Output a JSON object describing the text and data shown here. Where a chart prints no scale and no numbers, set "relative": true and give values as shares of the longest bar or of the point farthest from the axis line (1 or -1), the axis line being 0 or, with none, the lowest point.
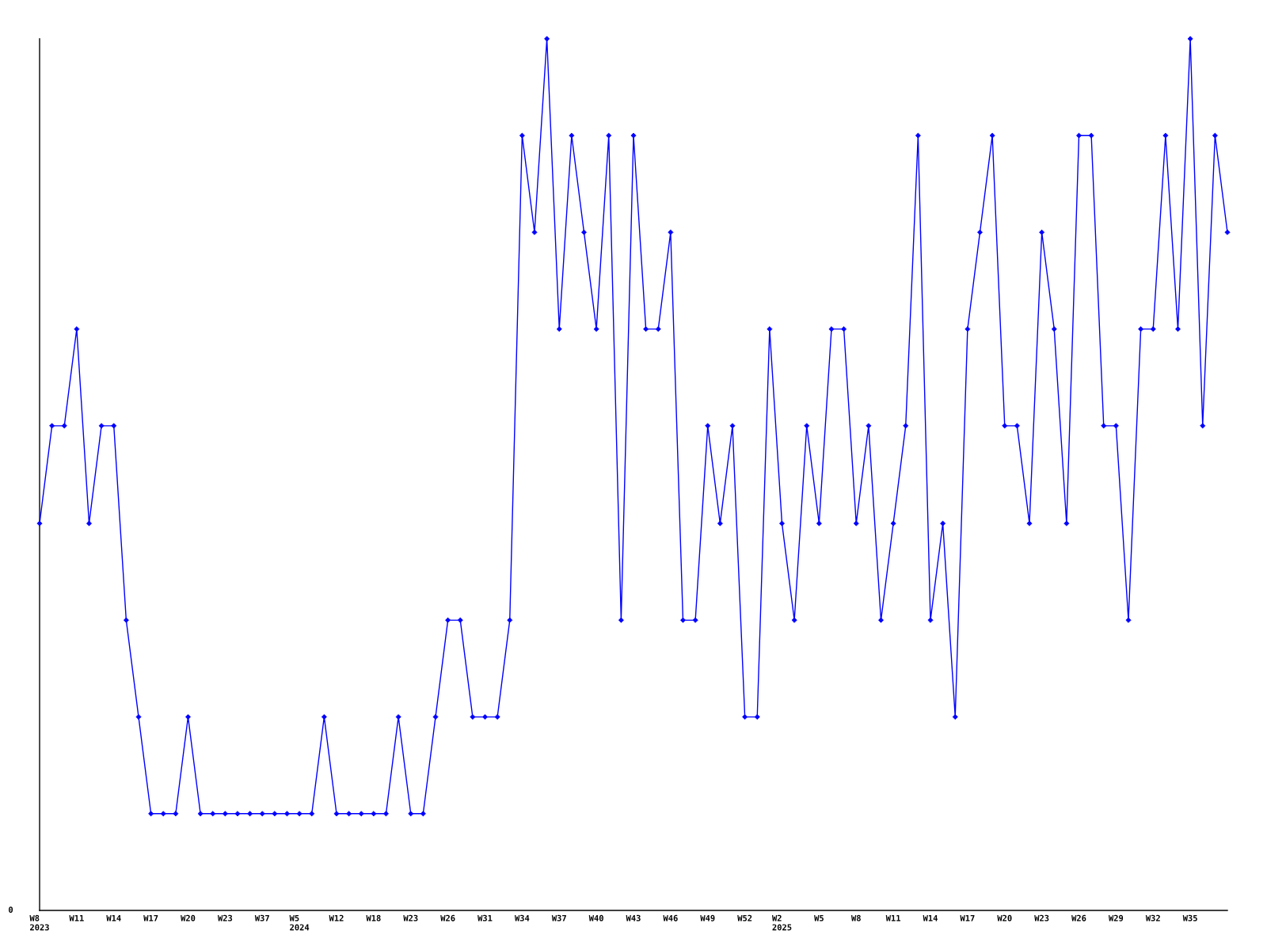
{
  "chart_data": {
    "type": "line",
    "relative": true,
    "marker": "diamond",
    "line_style": "solid",
    "tick_labels": "x",
    "categories": [
      "W8\n2023",
      null,
      null,
      "W11",
      null,
      null,
      "W14",
      null,
      null,
      "W17",
      null,
      null,
      "W20",
      null,
      null,
      "W23",
      null,
      null,
      "W37",
      null,
      null,
      "W5\n2024",
      null,
      null,
      "W12",
      null,
      null,
      "W18",
      null,
      null,
      "W23",
      null,
      null,
      "W26",
      null,
      null,
      "W31",
      null,
      null,
      "W34",
      null,
      null,
      "W37",
      null,
      null,
      "W40",
      null,
      null,
      "W43",
      null,
      null,
      "W46",
      null,
      null,
      "W49",
      null,
      null,
      "W52",
      null,
      null,
      "W2\n2025",
      null,
      null,
      "W5",
      null,
      null,
      "W8",
      null,
      null,
      "W11",
      null,
      null,
      "W14",
      null,
      null,
      "W17",
      null,
      null,
      "W20",
      null,
      null,
      "W23",
      null,
      null,
      "W26",
      null,
      null,
      "W29",
      null,
      null,
      "W32",
      null,
      null,
      "W35",
      null,
      null,
      null
    ],
    "series": [
      {
        "color": "#0000ff",
        "values": [
          0.444,
          0.556,
          0.556,
          0.667,
          0.444,
          0.556,
          0.556,
          0.333,
          0.222,
          0.111,
          0.111,
          0.111,
          0.222,
          0.111,
          0.111,
          0.111,
          0.111,
          0.111,
          0.111,
          0.111,
          0.111,
          0.111,
          0.111,
          0.222,
          0.111,
          0.111,
          0.111,
          0.111,
          0.111,
          0.222,
          0.111,
          0.111,
          0.222,
          0.333,
          0.333,
          0.222,
          0.222,
          0.222,
          0.333,
          0.889,
          0.778,
          1,
          0.667,
          0.889,
          0.778,
          0.667,
          0.889,
          0.333,
          0.889,
          0.667,
          0.667,
          0.778,
          0.333,
          0.333,
          0.556,
          0.444,
          0.556,
          0.222,
          0.222,
          0.667,
          0.444,
          0.333,
          0.556,
          0.444,
          0.667,
          0.667,
          0.444,
          0.556,
          0.333,
          0.444,
          0.556,
          0.889,
          0.333,
          0.444,
          0.222,
          0.667,
          0.778,
          0.889,
          0.556,
          0.556,
          0.444,
          0.778,
          0.667,
          0.444,
          0.889,
          0.889,
          0.556,
          0.556,
          0.333,
          0.667,
          0.667,
          0.889,
          0.667,
          1,
          0.556,
          0.889,
          0.778
        ]
      }
    ],
    "annotations": [
      "0"
    ]
  }
}
